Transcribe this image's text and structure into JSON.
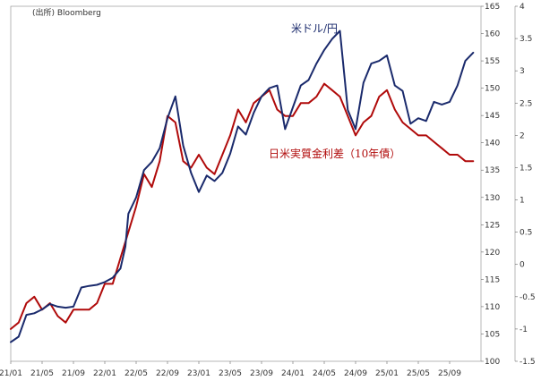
{
  "source_note": "(出所) Bloomberg",
  "chart_data": {
    "type": "line",
    "title": "",
    "x_ticks": [
      "21/01",
      "21/05",
      "21/09",
      "22/01",
      "22/05",
      "22/09",
      "23/01",
      "23/05",
      "23/09",
      "24/01",
      "24/05",
      "24/09",
      "25/01",
      "25/05",
      "25/09"
    ],
    "x_range": [
      "2021-01",
      "2025-12"
    ],
    "y_left": {
      "ticks": [
        "165",
        "160",
        "155",
        "150",
        "145",
        "140",
        "135",
        "130",
        "125",
        "120",
        "115",
        "110",
        "105",
        "100"
      ],
      "lim": [
        100,
        165
      ]
    },
    "y_right": {
      "ticks": [
        "4",
        "3.5",
        "3",
        "2.5",
        "2",
        "1.5",
        "1",
        "0.5",
        "0",
        "-0.5",
        "-1",
        "-1.5"
      ],
      "lim": [
        -1.5,
        4
      ]
    },
    "grid": false,
    "series": [
      {
        "name": "米ドル/円",
        "axis": "left",
        "color": "#1a2a6c",
        "x": [
          "2021-01-01",
          "2021-02-01",
          "2021-03-01",
          "2021-04-01",
          "2021-05-01",
          "2021-06-01",
          "2021-07-01",
          "2021-08-01",
          "2021-09-01",
          "2021-10-01",
          "2021-11-01",
          "2021-12-01",
          "2022-01-01",
          "2022-02-01",
          "2022-03-01",
          "2022-03-20",
          "2022-04-01",
          "2022-05-01",
          "2022-06-01",
          "2022-07-01",
          "2022-08-01",
          "2022-09-01",
          "2022-10-01",
          "2022-11-01",
          "2022-12-01",
          "2023-01-01",
          "2023-02-01",
          "2023-03-01",
          "2023-04-01",
          "2023-05-01",
          "2023-06-01",
          "2023-07-01",
          "2023-08-01",
          "2023-09-01",
          "2023-10-01",
          "2023-11-01",
          "2023-12-01",
          "2024-01-01",
          "2024-02-01",
          "2024-03-01",
          "2024-04-01",
          "2024-05-01",
          "2024-06-01",
          "2024-07-01",
          "2024-08-01",
          "2024-09-01",
          "2024-10-01",
          "2024-11-01",
          "2024-12-01",
          "2025-01-01",
          "2025-02-01",
          "2025-03-01",
          "2025-04-01",
          "2025-05-01",
          "2025-06-01",
          "2025-07-01",
          "2025-08-01",
          "2025-09-01",
          "2025-10-01",
          "2025-11-01",
          "2025-12-01"
        ],
        "values": [
          103.5,
          104.5,
          108.5,
          108.8,
          109.5,
          110.5,
          110.0,
          109.8,
          110.0,
          113.5,
          113.8,
          114.0,
          114.5,
          115.3,
          117.0,
          121.0,
          127.0,
          130.0,
          135.0,
          136.5,
          139.0,
          144.5,
          148.5,
          139.5,
          134.5,
          131.0,
          134.0,
          133.0,
          134.5,
          138.0,
          143.0,
          141.5,
          145.5,
          148.5,
          150.0,
          150.5,
          142.5,
          146.5,
          150.5,
          151.5,
          154.5,
          157.0,
          159.0,
          160.5,
          146.0,
          142.5,
          151.0,
          154.5,
          155.0,
          156.0,
          150.5,
          149.5,
          143.5,
          144.5,
          144.0,
          147.5,
          147.0,
          147.5,
          150.5,
          155.0,
          156.5
        ]
      },
      {
        "name": "日米実質金利差（10年債）",
        "axis": "right",
        "color": "#b00a0a",
        "x": [
          "2021-01-01",
          "2021-02-01",
          "2021-03-01",
          "2021-04-01",
          "2021-05-01",
          "2021-06-01",
          "2021-07-01",
          "2021-08-01",
          "2021-09-01",
          "2021-10-01",
          "2021-11-01",
          "2021-12-01",
          "2022-01-01",
          "2022-02-01",
          "2022-03-01",
          "2022-04-01",
          "2022-05-01",
          "2022-06-01",
          "2022-07-01",
          "2022-08-01",
          "2022-09-01",
          "2022-10-01",
          "2022-11-01",
          "2022-12-01",
          "2023-01-01",
          "2023-02-01",
          "2023-03-01",
          "2023-04-01",
          "2023-05-01",
          "2023-06-01",
          "2023-07-01",
          "2023-08-01",
          "2023-09-01",
          "2023-10-01",
          "2023-11-01",
          "2023-12-01",
          "2024-01-01",
          "2024-02-01",
          "2024-03-01",
          "2024-04-01",
          "2024-05-01",
          "2024-06-01",
          "2024-07-01",
          "2024-08-01",
          "2024-09-01",
          "2024-10-01",
          "2024-11-01",
          "2024-12-01",
          "2025-01-01",
          "2025-02-01",
          "2025-03-01",
          "2025-04-01",
          "2025-05-01",
          "2025-06-01",
          "2025-07-01",
          "2025-08-01",
          "2025-09-01",
          "2025-10-01",
          "2025-11-01",
          "2025-12-01"
        ],
        "values": [
          -1.0,
          -0.9,
          -0.6,
          -0.5,
          -0.7,
          -0.6,
          -0.8,
          -0.9,
          -0.7,
          -0.7,
          -0.7,
          -0.6,
          -0.3,
          -0.3,
          0.1,
          0.5,
          0.9,
          1.4,
          1.2,
          1.6,
          2.3,
          2.2,
          1.6,
          1.5,
          1.7,
          1.5,
          1.4,
          1.7,
          2.0,
          2.4,
          2.2,
          2.5,
          2.6,
          2.7,
          2.4,
          2.3,
          2.3,
          2.5,
          2.5,
          2.6,
          2.8,
          2.7,
          2.6,
          2.3,
          2.0,
          2.2,
          2.3,
          2.6,
          2.7,
          2.4,
          2.2,
          2.1,
          2.0,
          2.0,
          1.9,
          1.8,
          1.7,
          1.7,
          1.6,
          1.6
        ]
      }
    ]
  }
}
